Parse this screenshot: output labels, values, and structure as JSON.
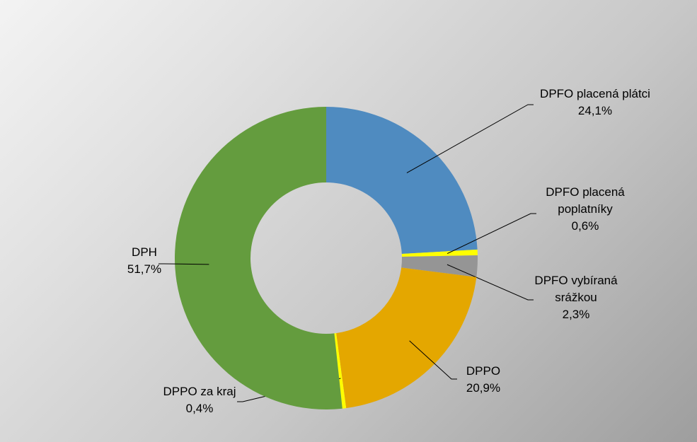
{
  "chart_data": {
    "type": "pie",
    "variant": "donut",
    "title": "",
    "legend": "none",
    "slices": [
      {
        "name": "DPFO placená plátci",
        "value": 24.1,
        "value_label": "24,1%",
        "color": "#4f8bc0",
        "label_lines": [
          "DPFO placená plátci",
          "24,1%"
        ]
      },
      {
        "name": "DPFO placená poplatníky",
        "value": 0.6,
        "value_label": "0,6%",
        "color": "#ffff00",
        "label_lines": [
          "DPFO placená",
          "poplatníky",
          "0,6%"
        ]
      },
      {
        "name": "DPFO vybíraná srážkou",
        "value": 2.3,
        "value_label": "2,3%",
        "color": "#959595",
        "label_lines": [
          "DPFO vybíraná",
          "srážkou",
          "2,3%"
        ]
      },
      {
        "name": "DPPO",
        "value": 20.9,
        "value_label": "20,9%",
        "color": "#e4a700",
        "label_lines": [
          "DPPO",
          "20,9%"
        ]
      },
      {
        "name": "DPPO za kraj",
        "value": 0.4,
        "value_label": "0,4%",
        "color": "#ffff00",
        "label_lines": [
          "DPPO za kraj",
          "0,4%"
        ]
      },
      {
        "name": "DPH",
        "value": 51.7,
        "value_label": "51,7%",
        "color": "#649c3e",
        "label_lines": [
          "DPH",
          "51,7%"
        ]
      }
    ]
  }
}
